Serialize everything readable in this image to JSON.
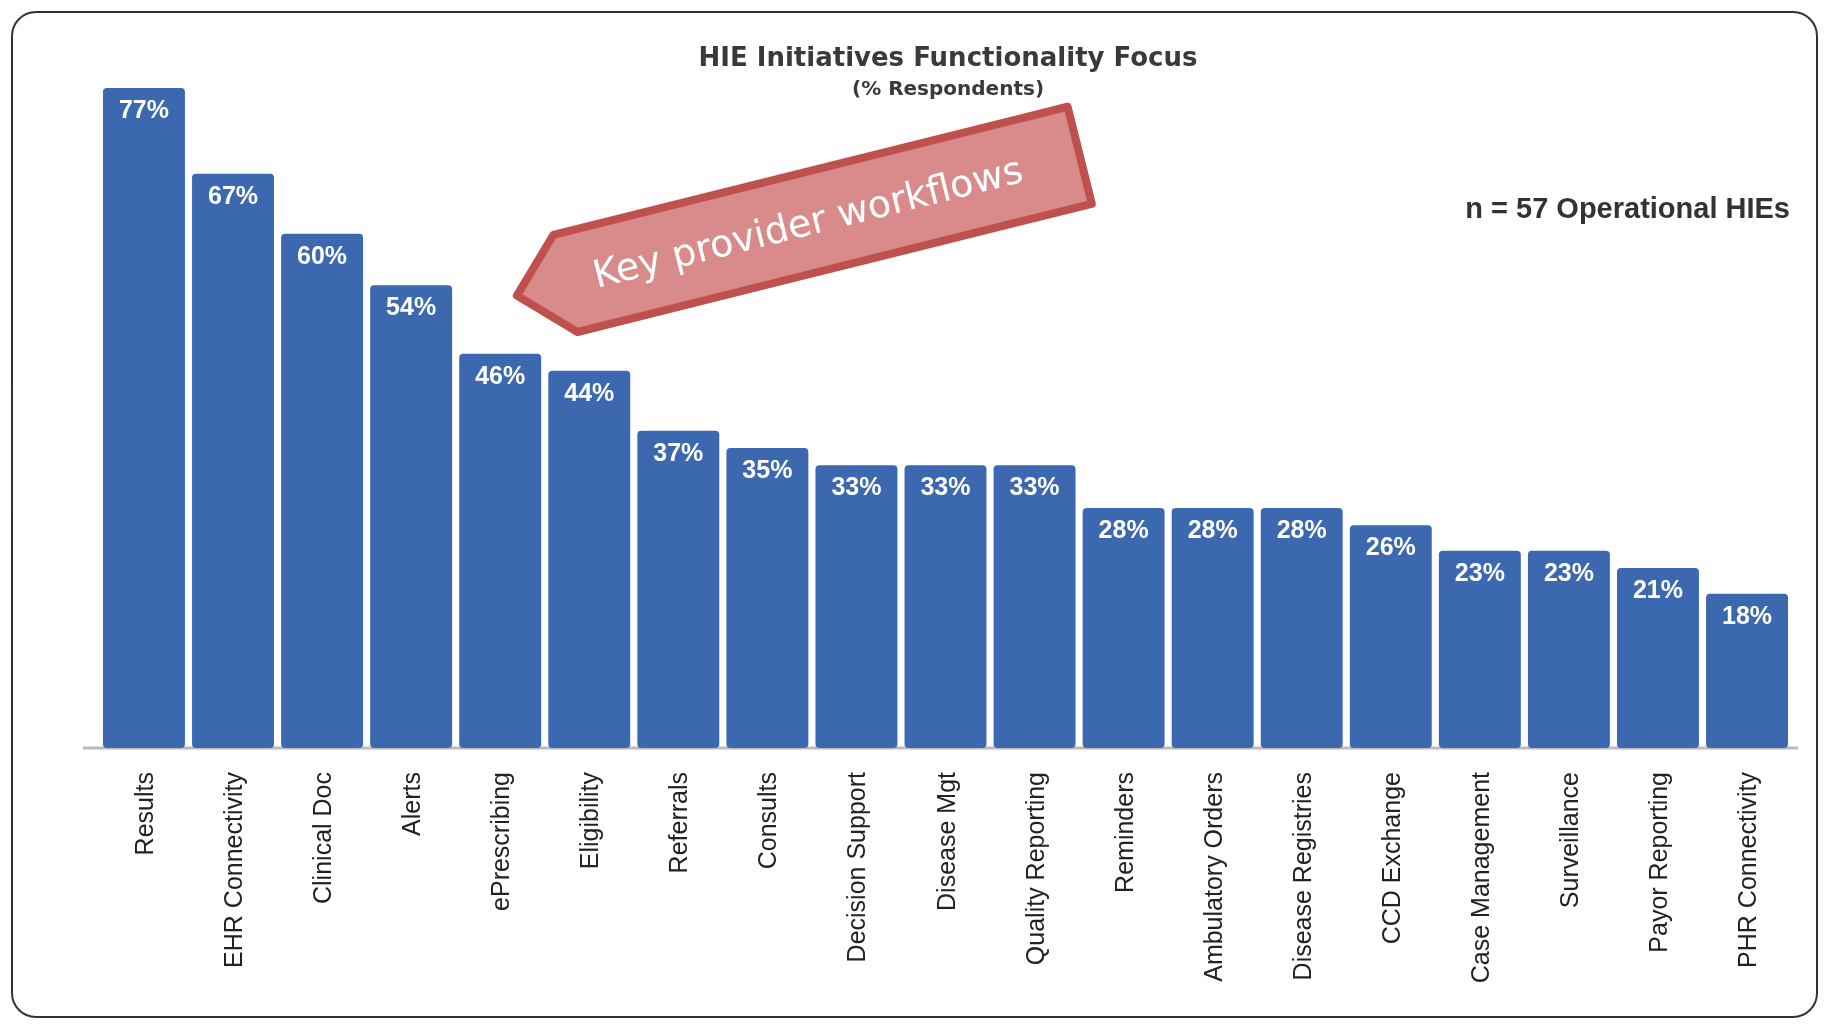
{
  "chart_data": {
    "type": "bar",
    "title": "HIE Initiatives Functionality Focus",
    "subtitle": "(% Respondents)",
    "categories": [
      "Results",
      "EHR Connectivity",
      "Clinical Doc",
      "Alerts",
      "ePrescribing",
      "Eligibility",
      "Referrals",
      "Consults",
      "Decision Support",
      "Disease Mgt",
      "Quality Reporting",
      "Reminders",
      "Ambulatory Orders",
      "Disease Registries",
      "CCD Exchange",
      "Case Management",
      "Surveillance",
      "Payor Reporting",
      "PHR Connectivity"
    ],
    "values": [
      77,
      67,
      60,
      54,
      46,
      44,
      37,
      35,
      33,
      33,
      33,
      28,
      28,
      28,
      26,
      23,
      23,
      21,
      18
    ],
    "value_labels": [
      "77%",
      "67%",
      "60%",
      "54%",
      "46%",
      "44%",
      "37%",
      "35%",
      "33%",
      "33%",
      "33%",
      "28%",
      "28%",
      "28%",
      "26%",
      "23%",
      "23%",
      "21%",
      "18%"
    ],
    "color": "#3c68b0",
    "annotations": [
      "Key provider workflows",
      "n = 57 Operational HIEs"
    ]
  }
}
